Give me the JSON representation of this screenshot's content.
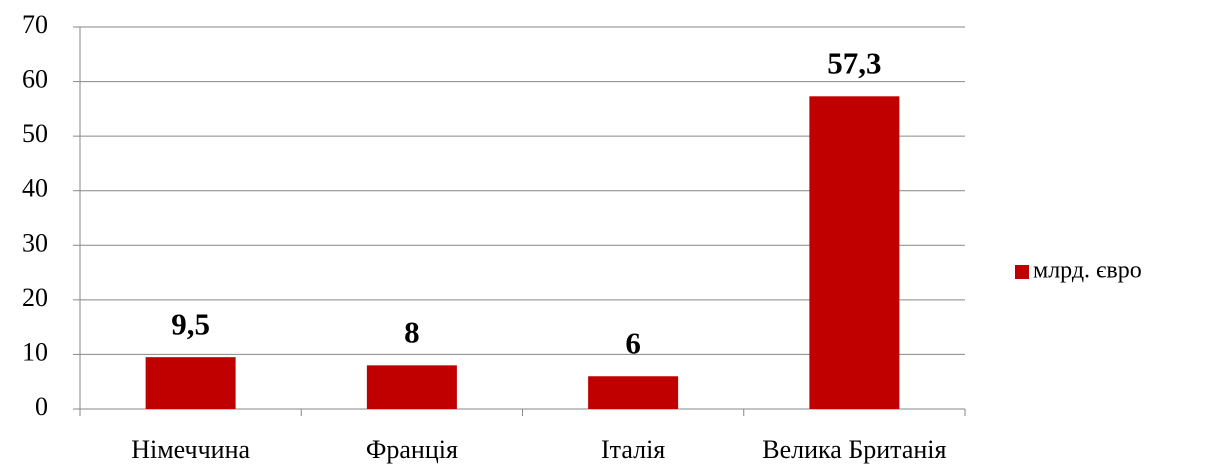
{
  "chart_data": {
    "type": "bar",
    "categories": [
      "Німеччина",
      "Франція",
      "Італія",
      "Велика Британія"
    ],
    "series": [
      {
        "name": "млрд. євро",
        "color": "#c00000",
        "values": [
          9.5,
          8,
          6,
          57.3
        ],
        "value_labels": [
          "9,5",
          "8",
          "6",
          "57,3"
        ]
      }
    ],
    "ylim": [
      0,
      70
    ],
    "yticks": [
      0,
      10,
      20,
      30,
      40,
      50,
      60,
      70
    ],
    "grid": true,
    "legend": "right"
  }
}
